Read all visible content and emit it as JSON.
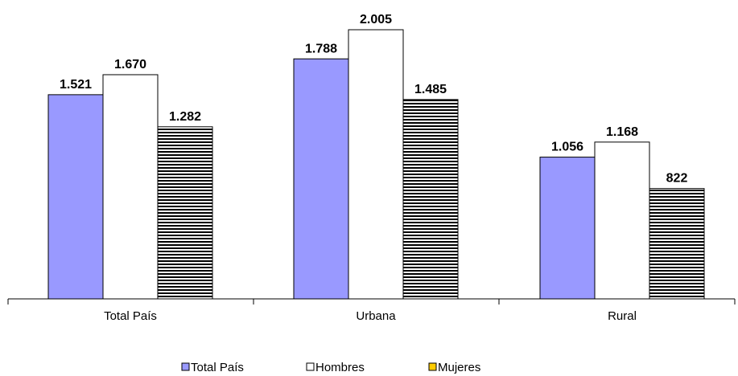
{
  "chart_data": {
    "type": "bar",
    "categories": [
      "Total País",
      "Urbana",
      "Rural"
    ],
    "series": [
      {
        "name": "Total País",
        "values": [
          1521,
          1788,
          1056
        ],
        "labels": [
          "1.521",
          "1.788",
          "1.056"
        ],
        "color": "#9999ff",
        "pattern": "solid"
      },
      {
        "name": "Hombres",
        "values": [
          1670,
          2005,
          1168
        ],
        "labels": [
          "1.670",
          "2.005",
          "1.168"
        ],
        "color": "#ffffff",
        "pattern": "solid"
      },
      {
        "name": "Mujeres",
        "values": [
          1282,
          1485,
          822
        ],
        "labels": [
          "1.282",
          "1.485",
          "822"
        ],
        "color": "#ffcc00",
        "pattern": "horizontal-stripes"
      }
    ],
    "title": "",
    "xlabel": "",
    "ylabel": "",
    "ylim": [
      0,
      2200
    ],
    "grid": false,
    "legend": "bottom"
  }
}
